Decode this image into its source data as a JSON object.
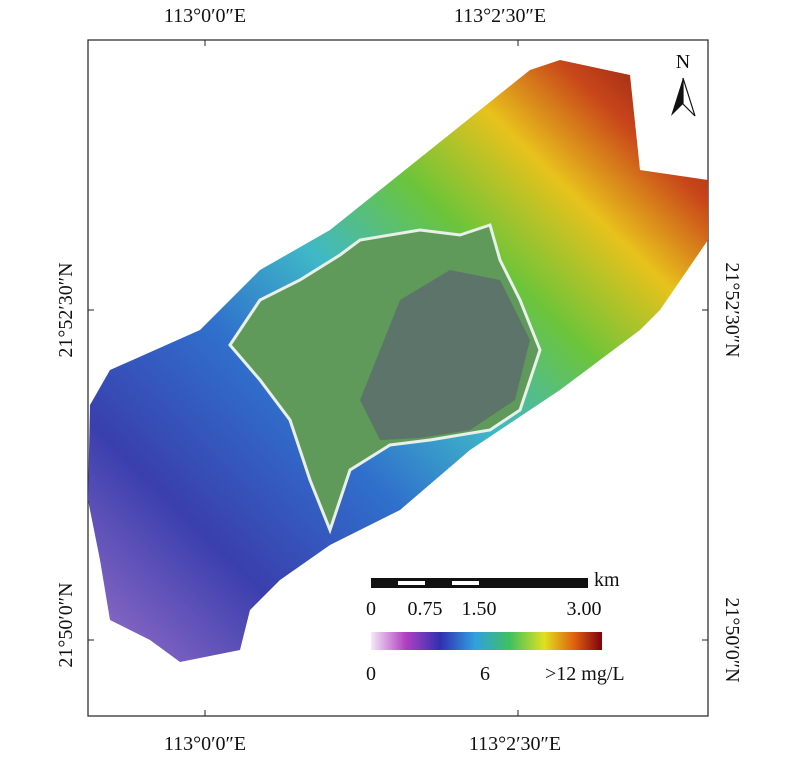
{
  "map": {
    "top_labels": [
      "113°0′0″E",
      "113°2′30″E"
    ],
    "bottom_labels": [
      "113°0′0″E",
      "113°2′30″E"
    ],
    "left_labels": [
      "21°52′30″N",
      "21°50′0″N"
    ],
    "right_labels": [
      "21°52′30″N",
      "21°50′0″N"
    ],
    "north": "N",
    "scale_bar": {
      "unit": "km",
      "labels": [
        "0",
        "0.75",
        "1.50",
        "3.00"
      ]
    },
    "legend": {
      "labels": [
        "0",
        "6",
        ">12 mg/L"
      ]
    }
  }
}
